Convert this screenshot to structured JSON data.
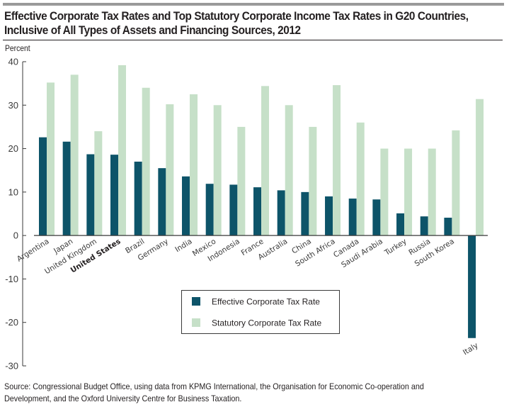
{
  "header": {
    "title_line1": "Effective Corporate Tax Rates and Top Statutory Corporate Income Tax Rates in G20 Countries,",
    "title_line2": "Inclusive of All Types of Assets and Financing Sources, 2012"
  },
  "footer": {
    "source_line1": "Source: Congressional Budget Office, using data from KPMG International, the Organisation for Economic Co-operation and",
    "source_line2": "Development, and the Oxford University Centre for Business Taxation."
  },
  "chart_data": {
    "type": "bar",
    "title": "Effective Corporate Tax Rates and Top Statutory Corporate Income Tax Rates in G20 Countries, Inclusive of All Types of Assets and Financing Sources, 2012",
    "xlabel": "",
    "ylabel": "Percent",
    "ylim": [
      -30,
      40
    ],
    "yticks": [
      40,
      30,
      20,
      10,
      0,
      -10,
      -20,
      -30
    ],
    "grid": false,
    "legend_position": "lower-center",
    "highlighted_category": "United States",
    "categories": [
      "Argentina",
      "Japan",
      "United Kingdom",
      "United States",
      "Brazil",
      "Germany",
      "India",
      "Mexico",
      "Indonesia",
      "France",
      "Australia",
      "China",
      "South Africa",
      "Canada",
      "Saudi Arabia",
      "Turkey",
      "Russia",
      "South Korea",
      "Italy"
    ],
    "series": [
      {
        "name": "Effective Corporate Tax Rate",
        "color": "#0d5469",
        "values": [
          22.6,
          21.6,
          18.7,
          18.6,
          17.0,
          15.5,
          13.6,
          11.9,
          11.7,
          11.1,
          10.4,
          10.0,
          9.0,
          8.5,
          8.3,
          5.1,
          4.4,
          4.1,
          -23.6
        ]
      },
      {
        "name": "Statutory Corporate Tax Rate",
        "color": "#c6e0c8",
        "values": [
          35.2,
          37.0,
          24.0,
          39.2,
          34.0,
          30.2,
          32.5,
          30.0,
          25.0,
          34.4,
          30.0,
          25.0,
          34.6,
          26.0,
          20.0,
          20.0,
          20.0,
          24.2,
          31.4
        ]
      }
    ]
  }
}
